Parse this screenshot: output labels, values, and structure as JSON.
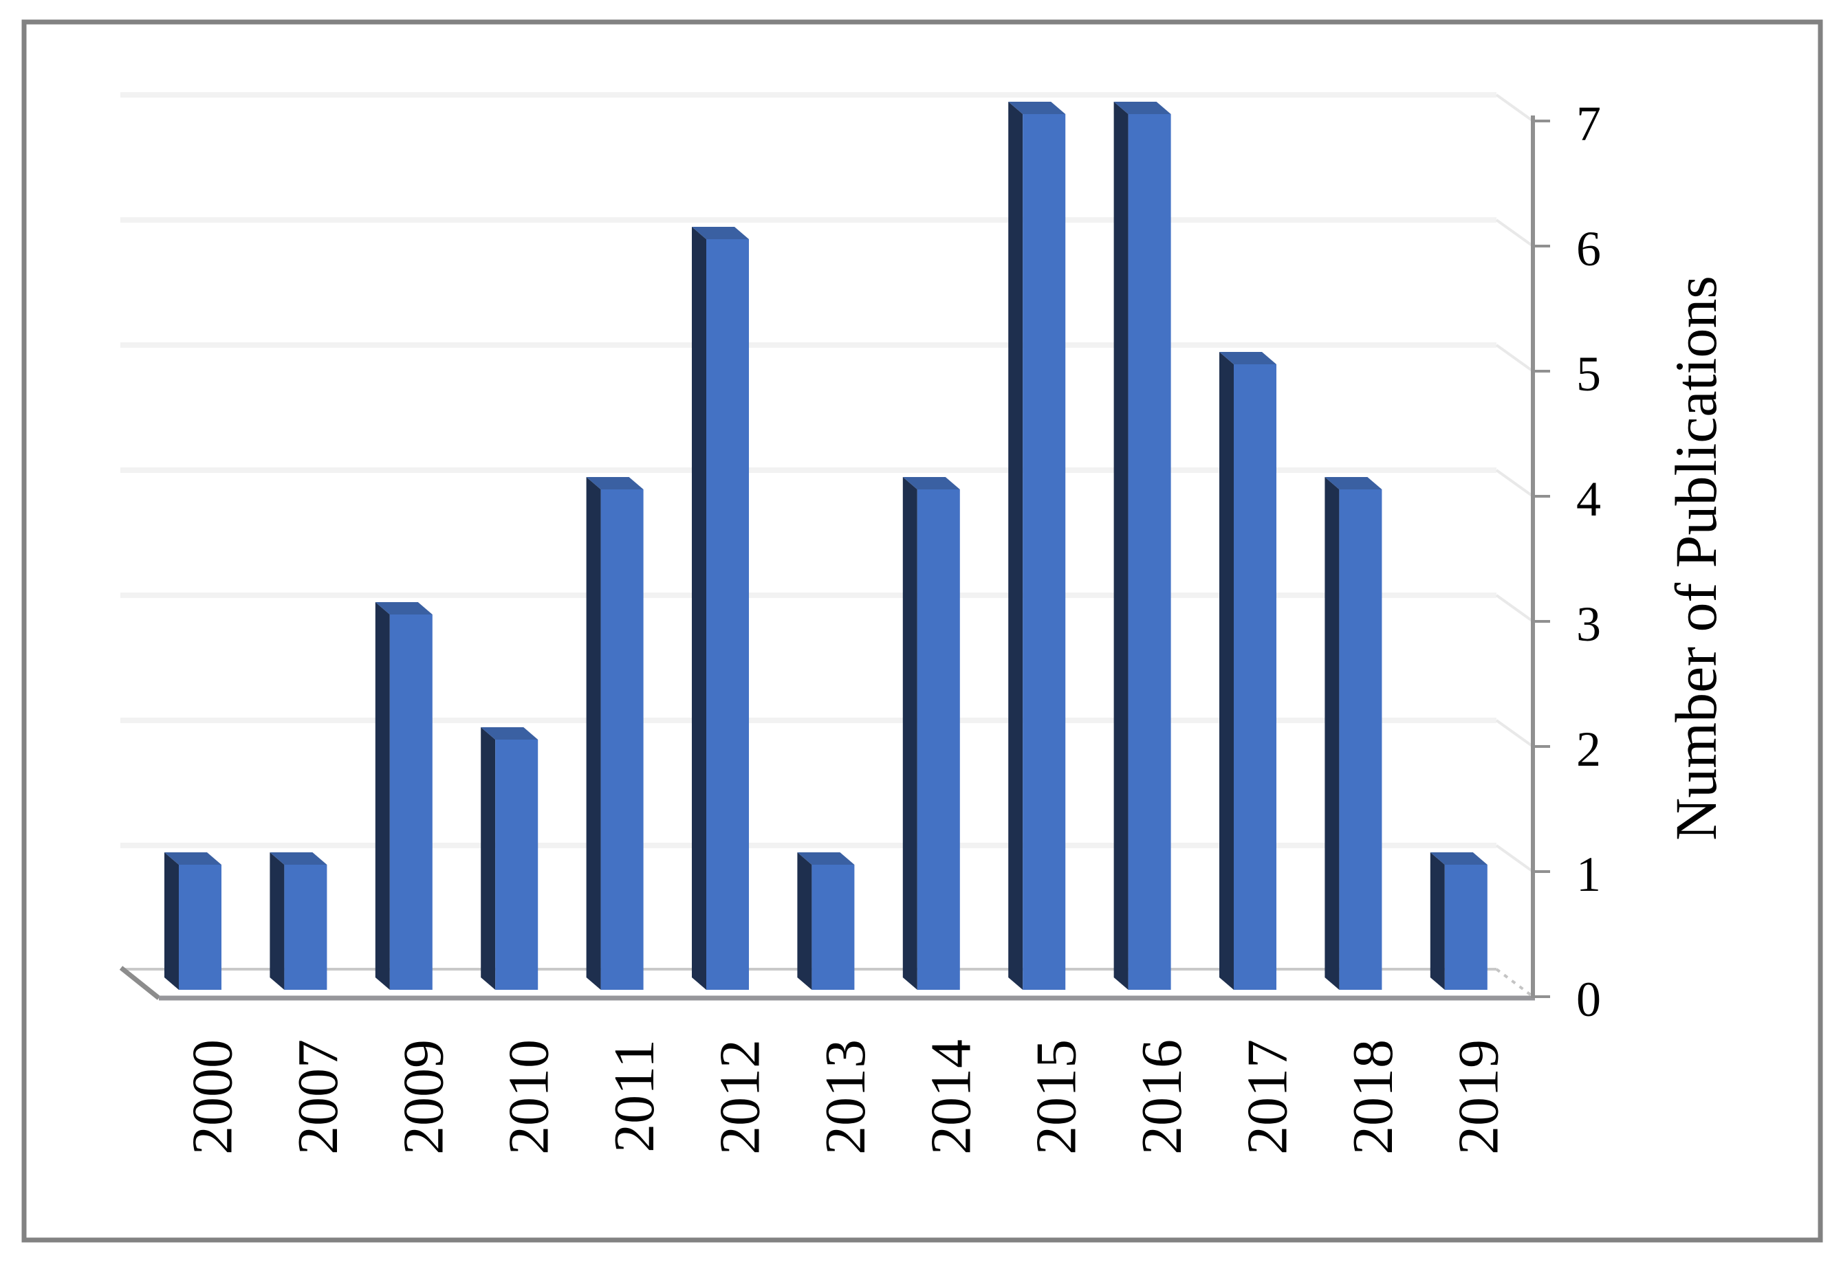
{
  "chart_data": {
    "type": "bar",
    "title": "",
    "categories": [
      "2000",
      "2007",
      "2009",
      "2010",
      "2011",
      "2012",
      "2013",
      "2014",
      "2015",
      "2016",
      "2017",
      "2018",
      "2019"
    ],
    "values": [
      1,
      1,
      3,
      2,
      4,
      6,
      1,
      4,
      7,
      7,
      5,
      4,
      1
    ],
    "xlabel": "",
    "ylabel": "Number of Publications",
    "ylim": [
      0,
      7
    ],
    "yticks": [
      0,
      1,
      2,
      3,
      4,
      5,
      6,
      7
    ],
    "axis_side": "right",
    "grid": "horizontal",
    "legend": "none",
    "style_3d": true,
    "colors": {
      "bar_front": "#4472C4",
      "bar_side": "#1E2F4E",
      "bar_top": "#3A60A2",
      "gridline": "#F2F2F2",
      "side_gridline": "#E9E9E9",
      "axis_line": "#909090",
      "floor_front_edge": "#96969A",
      "floor_back_edge": "#C9C9C9",
      "floor_left_edge": "#8C8C8C",
      "floor_right_edge": "#C4C4C4",
      "text": "#000000",
      "frame_border": "#828282",
      "background": "#FFFFFF"
    }
  }
}
